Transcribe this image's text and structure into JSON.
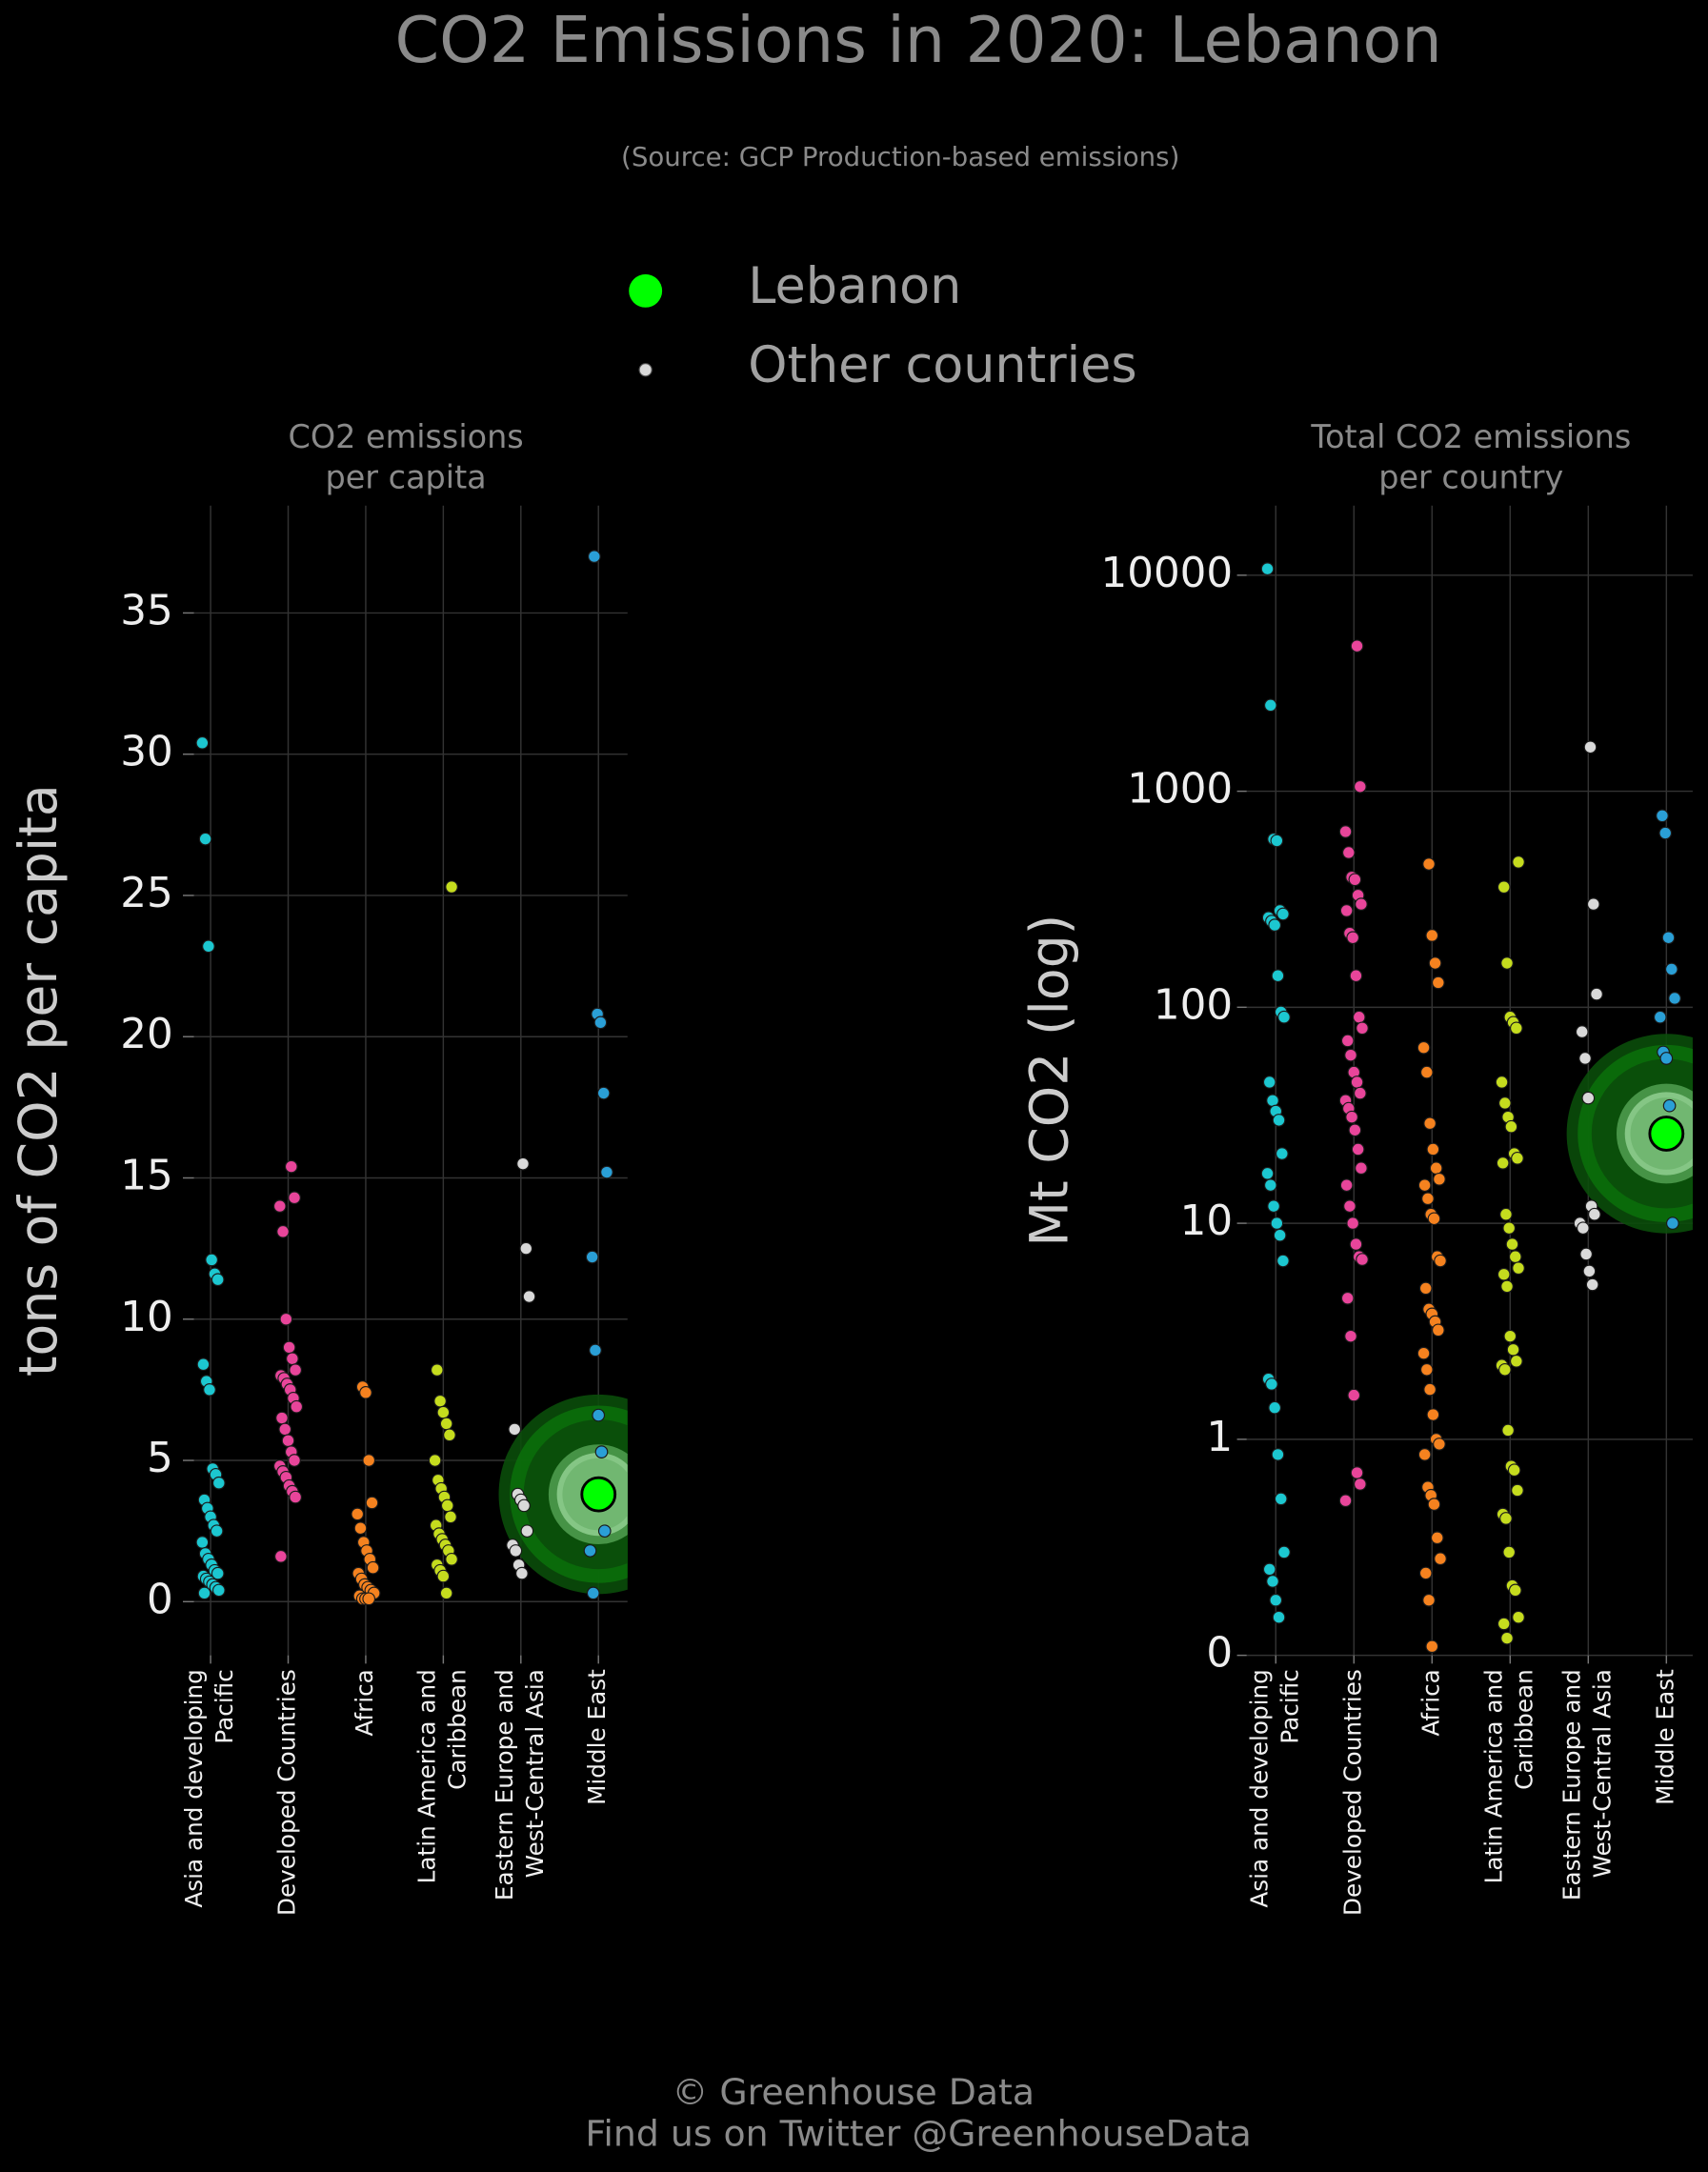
{
  "title": "CO2 Emissions in 2020: Lebanon",
  "subtitle": "(Source: GCP Production-based emissions)",
  "legend": [
    {
      "name": "Lebanon",
      "color": "#00ff00"
    },
    {
      "name": "Other countries",
      "color": "#d9d9d9"
    }
  ],
  "footer": [
    "© Greenhouse Data",
    "Find us on Twitter @GreenhouseData"
  ],
  "chart_data": [
    {
      "type": "strip",
      "title": "CO2 emissions\nper capita",
      "ylabel": "tons of CO2 per capita",
      "categories": [
        "Asia and developing\nPacific",
        "Developed Countries",
        "Africa",
        "Latin America and\nCaribbean",
        "Eastern Europe and\nWest-Central Asia",
        "Middle East"
      ],
      "colors": [
        "#1cc7d0",
        "#e8459a",
        "#f5821f",
        "#c5dc1e",
        "#d9d9d9",
        "#2a9fd6"
      ],
      "values": [
        [
          30.4,
          27.0,
          23.2,
          12.1,
          11.6,
          11.4,
          8.4,
          7.8,
          7.5,
          4.7,
          4.5,
          4.2,
          3.6,
          3.3,
          3.0,
          2.7,
          2.5,
          2.1,
          1.7,
          1.5,
          1.3,
          1.1,
          1.0,
          0.9,
          0.8,
          0.7,
          0.6,
          0.5,
          0.4,
          0.3
        ],
        [
          15.4,
          14.3,
          14.0,
          13.1,
          10.0,
          9.0,
          8.6,
          8.2,
          8.0,
          7.9,
          7.7,
          7.5,
          7.2,
          6.9,
          6.5,
          6.1,
          5.7,
          5.3,
          5.0,
          4.8,
          4.6,
          4.4,
          4.1,
          3.9,
          3.7,
          1.6
        ],
        [
          7.6,
          7.4,
          5.0,
          3.5,
          3.1,
          2.6,
          2.1,
          1.8,
          1.5,
          1.2,
          1.0,
          0.8,
          0.6,
          0.5,
          0.4,
          0.3,
          0.2,
          0.1,
          0.1,
          0.1
        ],
        [
          25.3,
          8.2,
          7.1,
          6.7,
          6.3,
          5.9,
          5.0,
          4.3,
          4.0,
          3.7,
          3.4,
          3.0,
          2.7,
          2.4,
          2.2,
          2.0,
          1.8,
          1.5,
          1.3,
          1.1,
          0.9,
          0.3
        ],
        [
          15.5,
          12.5,
          10.8,
          6.1,
          3.8,
          3.6,
          3.4,
          2.5,
          2.0,
          1.8,
          1.3,
          1.0
        ],
        [
          37.0,
          20.8,
          20.5,
          18.0,
          15.2,
          12.2,
          8.9,
          6.6,
          5.3,
          2.5,
          1.8,
          0.3
        ]
      ],
      "highlight": {
        "name": "Lebanon",
        "category": "Middle East",
        "value": 3.8,
        "color": "#00ff00"
      },
      "ylim": [
        -1.9,
        38.8
      ],
      "yticks": [
        0,
        5,
        10,
        15,
        20,
        25,
        30,
        35
      ],
      "log": false,
      "grid": true
    },
    {
      "type": "strip",
      "title": "Total CO2 emissions\nper country",
      "ylabel": "Mt CO2 (log)",
      "categories": [
        "Asia and developing\nPacific",
        "Developed Countries",
        "Africa",
        "Latin America and\nCaribbean",
        "Eastern Europe and\nWest-Central Asia",
        "Middle East"
      ],
      "colors": [
        "#1cc7d0",
        "#e8459a",
        "#f5821f",
        "#c5dc1e",
        "#d9d9d9",
        "#2a9fd6"
      ],
      "values": [
        [
          10700,
          2500,
          600,
          590,
          280,
          270,
          260,
          250,
          240,
          140,
          95,
          90,
          45,
          37,
          33,
          30,
          21,
          17,
          15,
          12,
          10,
          8.8,
          6.7,
          1.9,
          1.8,
          1.4,
          0.85,
          0.53,
          0.3,
          0.25,
          0.22,
          0.18,
          0.15
        ],
        [
          4700,
          1050,
          650,
          520,
          400,
          390,
          330,
          300,
          280,
          220,
          210,
          140,
          90,
          80,
          70,
          60,
          50,
          45,
          40,
          37,
          34,
          31,
          27,
          22,
          18,
          15,
          12,
          10,
          8,
          7,
          6.8,
          4.5,
          3.0,
          1.6,
          0.7,
          0.62,
          0.52
        ],
        [
          460,
          215,
          160,
          130,
          65,
          50,
          29,
          22,
          18,
          16,
          15,
          13,
          11,
          10.5,
          7,
          6.7,
          5,
          4,
          3.8,
          3.5,
          3.2,
          2.5,
          2.1,
          1.7,
          1.3,
          1.0,
          0.95,
          0.85,
          0.6,
          0.55,
          0.5,
          0.35,
          0.28,
          0.24,
          0.18,
          0.11
        ],
        [
          470,
          360,
          160,
          90,
          85,
          80,
          45,
          36,
          31,
          28,
          21,
          20,
          19,
          11,
          9.5,
          8,
          7,
          6.2,
          5.8,
          5.1,
          3,
          2.6,
          2.3,
          2.2,
          2.1,
          1.1,
          0.75,
          0.72,
          0.58,
          0.45,
          0.43,
          0.3,
          0.21,
          0.2,
          0.15,
          0.14,
          0.12
        ],
        [
          1600,
          300,
          115,
          77,
          58,
          38,
          12,
          11,
          10,
          9.5,
          7.2,
          6,
          5.2
        ],
        [
          770,
          640,
          210,
          150,
          110,
          90,
          62,
          58,
          35,
          10
        ]
      ],
      "highlight": {
        "name": "Lebanon",
        "category": "Middle East",
        "value": 26,
        "color": "#00ff00"
      },
      "ylim": [
        0.1,
        21000
      ],
      "yticks": [
        {
          "value": 0.1,
          "label": "0"
        },
        1,
        10,
        100,
        1000,
        10000
      ],
      "log": true,
      "grid": true
    }
  ]
}
